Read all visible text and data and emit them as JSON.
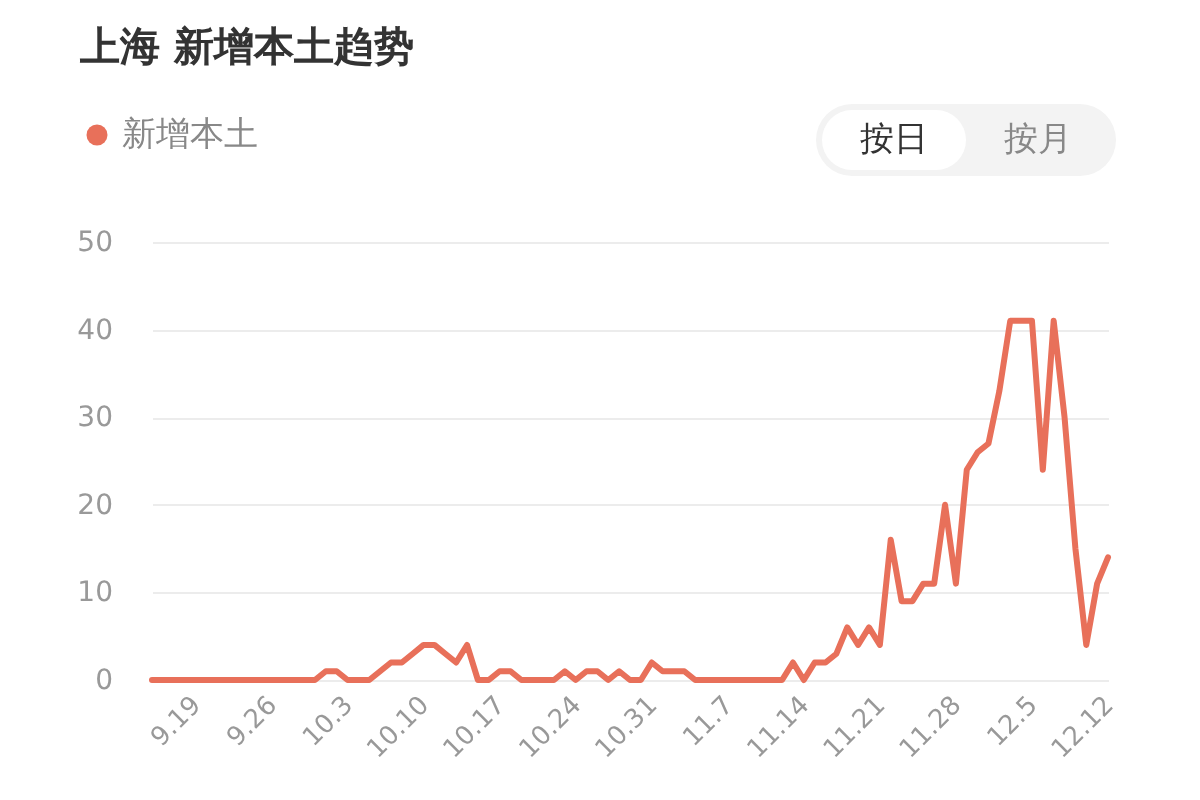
{
  "chart_data": {
    "type": "line",
    "title": "上海 新增本土趋势",
    "annotations": [
      "按日",
      "按月"
    ],
    "x": [
      "--09-15",
      "--09-16",
      "--09-17",
      "--09-18",
      "--09-19",
      "--09-20",
      "--09-21",
      "--09-22",
      "--09-23",
      "--09-24",
      "--09-25",
      "--09-26",
      "--09-27",
      "--09-28",
      "--09-29",
      "--09-30",
      "--10-01",
      "--10-02",
      "--10-03",
      "--10-04",
      "--10-05",
      "--10-06",
      "--10-07",
      "--10-08",
      "--10-09",
      "--10-10",
      "--10-11",
      "--10-12",
      "--10-13",
      "--10-14",
      "--10-15",
      "--10-16",
      "--10-17",
      "--10-18",
      "--10-19",
      "--10-20",
      "--10-21",
      "--10-22",
      "--10-23",
      "--10-24",
      "--10-25",
      "--10-26",
      "--10-27",
      "--10-28",
      "--10-29",
      "--10-30",
      "--10-31",
      "--11-01",
      "--11-02",
      "--11-03",
      "--11-04",
      "--11-05",
      "--11-06",
      "--11-07",
      "--11-08",
      "--11-09",
      "--11-10",
      "--11-11",
      "--11-12",
      "--11-13",
      "--11-14",
      "--11-15",
      "--11-16",
      "--11-17",
      "--11-18",
      "--11-19",
      "--11-20",
      "--11-21",
      "--11-22",
      "--11-23",
      "--11-24",
      "--11-25",
      "--11-26",
      "--11-27",
      "--11-28",
      "--11-29",
      "--11-30",
      "--12-01",
      "--12-02",
      "--12-03",
      "--12-04",
      "--12-05",
      "--12-06",
      "--12-07",
      "--12-08",
      "--12-09",
      "--12-10",
      "--12-11",
      "--12-12"
    ],
    "series": [
      {
        "name": "新增本土",
        "color": "#e8705a",
        "values": [
          0,
          0,
          0,
          0,
          0,
          0,
          0,
          0,
          0,
          0,
          0,
          0,
          0,
          0,
          0,
          0,
          1,
          1,
          0,
          0,
          0,
          1,
          2,
          2,
          3,
          4,
          4,
          3,
          2,
          4,
          0,
          0,
          1,
          1,
          0,
          0,
          0,
          0,
          1,
          0,
          1,
          1,
          0,
          1,
          0,
          0,
          2,
          1,
          1,
          1,
          0,
          0,
          0,
          0,
          0,
          0,
          0,
          0,
          0,
          2,
          0,
          2,
          2,
          3,
          6,
          4,
          6,
          4,
          16,
          9,
          9,
          11,
          11,
          20,
          11,
          24,
          26,
          27,
          33,
          41,
          41,
          41,
          24,
          41,
          30,
          15,
          4,
          11,
          14
        ]
      }
    ],
    "xlim": [
      "--09-15",
      "--12-12"
    ],
    "xticks": [
      {
        "value": "--09-19",
        "label": "9.19"
      },
      {
        "value": "--09-26",
        "label": "9.26"
      },
      {
        "value": "--10-03",
        "label": "10.3"
      },
      {
        "value": "--10-10",
        "label": "10.10"
      },
      {
        "value": "--10-17",
        "label": "10.17"
      },
      {
        "value": "--10-24",
        "label": "10.24"
      },
      {
        "value": "--10-31",
        "label": "10.31"
      },
      {
        "value": "--11-07",
        "label": "11.7"
      },
      {
        "value": "--11-14",
        "label": "11.14"
      },
      {
        "value": "--11-21",
        "label": "11.21"
      },
      {
        "value": "--11-28",
        "label": "11.28"
      },
      {
        "value": "--12-05",
        "label": "12.5"
      },
      {
        "value": "--12-12",
        "label": "12.12"
      }
    ],
    "ylim": [
      0,
      50
    ],
    "yticks": [
      0,
      10,
      20,
      30,
      40,
      50
    ],
    "grid": "y",
    "legend": "top left",
    "marker": "none",
    "line_style": "solid"
  }
}
